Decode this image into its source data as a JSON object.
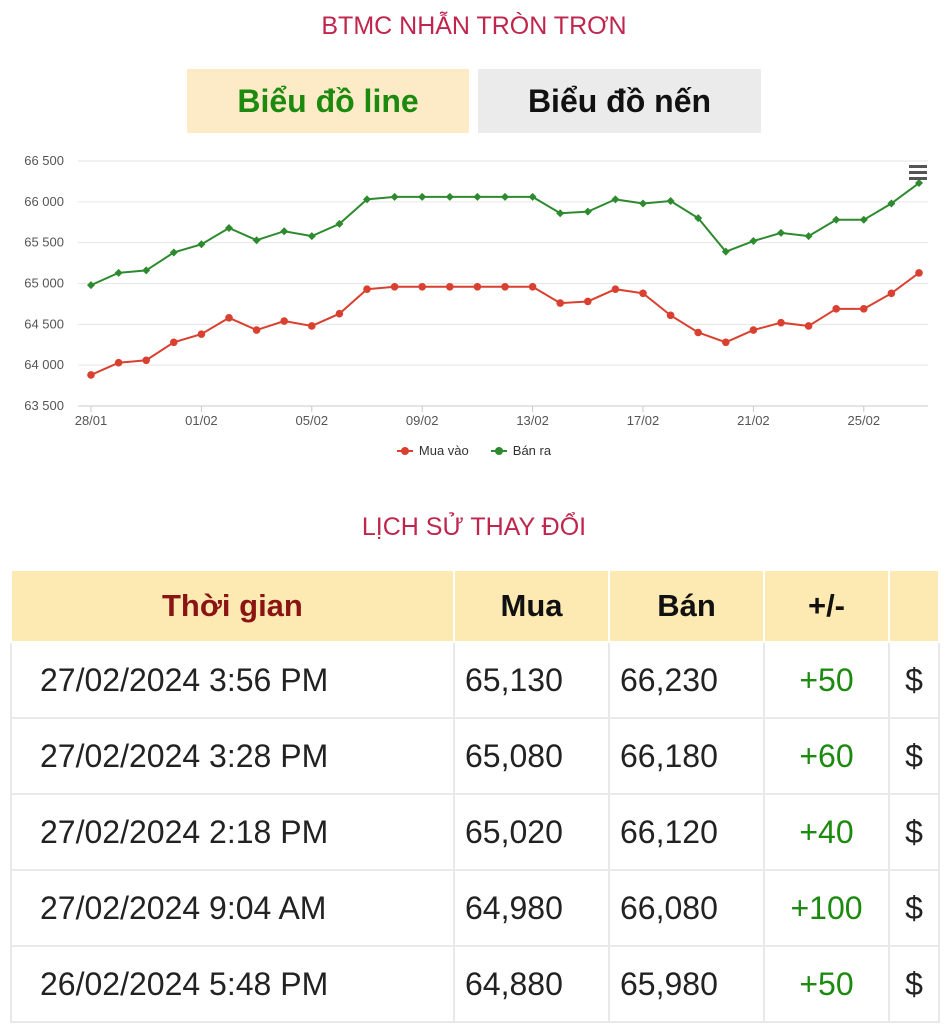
{
  "header": {
    "title": "BTMC NHẪN TRÒN TRƠN"
  },
  "tabs": {
    "line_label": "Biểu đồ line",
    "candle_label": "Biểu đồ nến"
  },
  "chart_data": {
    "type": "line",
    "x": [
      "28/01",
      "29/01",
      "30/01",
      "31/01",
      "01/02",
      "02/02",
      "03/02",
      "04/02",
      "05/02",
      "06/02",
      "07/02",
      "08/02",
      "09/02",
      "10/02",
      "11/02",
      "12/02",
      "13/02",
      "14/02",
      "15/02",
      "16/02",
      "17/02",
      "18/02",
      "19/02",
      "20/02",
      "21/02",
      "22/02",
      "23/02",
      "24/02",
      "25/02",
      "26/02",
      "27/02"
    ],
    "x_tick_labels": [
      "28/01",
      "01/02",
      "05/02",
      "09/02",
      "13/02",
      "17/02",
      "21/02",
      "25/02"
    ],
    "y_tick_labels": [
      "66 500",
      "66 000",
      "65 500",
      "65 000",
      "64 500",
      "64 000",
      "63 500"
    ],
    "ylim": [
      63500,
      66500
    ],
    "y_ticks": [
      63500,
      64000,
      64500,
      65000,
      65500,
      66000,
      66500
    ],
    "grid": "horizontal",
    "legend_position": "bottom-center",
    "series": [
      {
        "name": "Mua vào",
        "color": "#d9402f",
        "values": [
          63880,
          64030,
          64060,
          64280,
          64380,
          64580,
          64430,
          64540,
          64480,
          64630,
          64930,
          64960,
          64960,
          64960,
          64960,
          64960,
          64960,
          64760,
          64780,
          64930,
          64880,
          64610,
          64400,
          64280,
          64430,
          64520,
          64480,
          64690,
          64690,
          64880,
          65130
        ]
      },
      {
        "name": "Bán ra",
        "color": "#2e8a2e",
        "values": [
          64980,
          65130,
          65160,
          65380,
          65480,
          65680,
          65530,
          65640,
          65580,
          65730,
          66030,
          66060,
          66060,
          66060,
          66060,
          66060,
          66060,
          65860,
          65880,
          66030,
          65980,
          66010,
          65800,
          65390,
          65520,
          65620,
          65580,
          65780,
          65780,
          65980,
          66230
        ]
      }
    ]
  },
  "history": {
    "title": "LỊCH SỬ THAY ĐỔI",
    "headers": {
      "time": "Thời gian",
      "buy": "Mua",
      "sell": "Bán",
      "diff": "+/-"
    },
    "rows": [
      {
        "time": "27/02/2024 3:56 PM",
        "buy": "65,130",
        "sell": "66,230",
        "diff": "+50",
        "icon": "$"
      },
      {
        "time": "27/02/2024 3:28 PM",
        "buy": "65,080",
        "sell": "66,180",
        "diff": "+60",
        "icon": "$"
      },
      {
        "time": "27/02/2024 2:18 PM",
        "buy": "65,020",
        "sell": "66,120",
        "diff": "+40",
        "icon": "$"
      },
      {
        "time": "27/02/2024 9:04 AM",
        "buy": "64,980",
        "sell": "66,080",
        "diff": "+100",
        "icon": "$"
      },
      {
        "time": "26/02/2024 5:48 PM",
        "buy": "64,880",
        "sell": "65,980",
        "diff": "+50",
        "icon": "$"
      }
    ]
  }
}
